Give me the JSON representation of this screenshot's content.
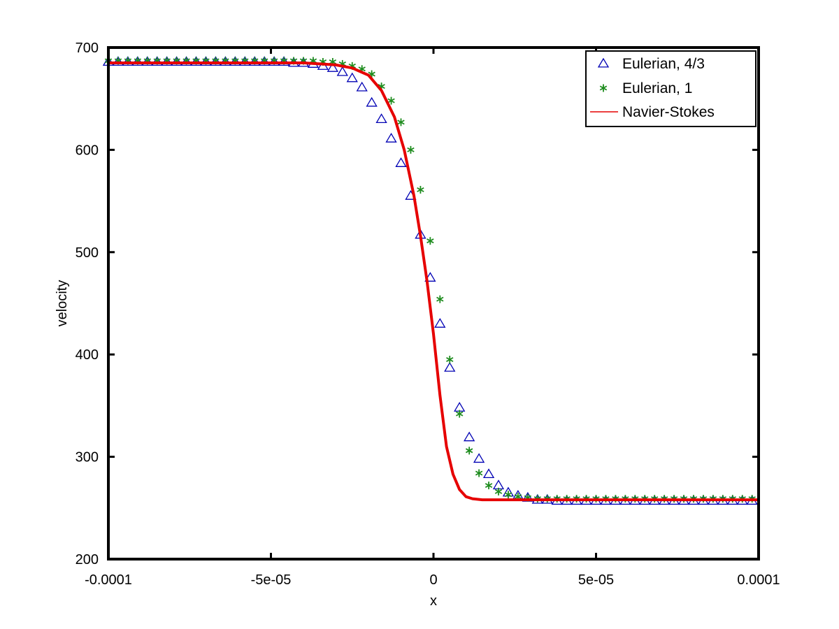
{
  "chart_data": {
    "type": "scatter",
    "title": "",
    "xlabel": "x",
    "ylabel": "velocity",
    "xlim": [
      -0.0001,
      0.0001
    ],
    "ylim": [
      200,
      700
    ],
    "x_ticks": [
      -0.0001,
      -5e-05,
      0,
      5e-05,
      0.0001
    ],
    "x_tick_labels": [
      "-0.0001",
      "-5e-05",
      "0",
      "5e-05",
      "0.0001"
    ],
    "y_ticks": [
      200,
      300,
      400,
      500,
      600,
      700
    ],
    "y_tick_labels": [
      "200",
      "300",
      "400",
      "500",
      "600",
      "700"
    ],
    "grid": false,
    "legend_position": "top-right",
    "series": [
      {
        "name": "Eulerian, 4/3",
        "style": "marker",
        "marker": "triangle",
        "color": "#0000b4",
        "x": [
          -0.0001,
          -9.7e-05,
          -9.4e-05,
          -9.1e-05,
          -8.8e-05,
          -8.5e-05,
          -8.2e-05,
          -7.9e-05,
          -7.6e-05,
          -7.3e-05,
          -7e-05,
          -6.7e-05,
          -6.4e-05,
          -6.1e-05,
          -5.8e-05,
          -5.5e-05,
          -5.2e-05,
          -4.9e-05,
          -4.6e-05,
          -4.3e-05,
          -4e-05,
          -3.7e-05,
          -3.4e-05,
          -3.1e-05,
          -2.8e-05,
          -2.5e-05,
          -2.2e-05,
          -1.9e-05,
          -1.6e-05,
          -1.3e-05,
          -1e-05,
          -7e-06,
          -4e-06,
          -1e-06,
          2e-06,
          5e-06,
          8e-06,
          1.1e-05,
          1.4e-05,
          1.7e-05,
          2e-05,
          2.3e-05,
          2.6e-05,
          2.9e-05,
          3.2e-05,
          3.5e-05,
          3.8e-05,
          4.1e-05,
          4.4e-05,
          4.7e-05,
          5e-05,
          5.3e-05,
          5.6e-05,
          5.9e-05,
          6.2e-05,
          6.5e-05,
          6.8e-05,
          7.1e-05,
          7.4e-05,
          7.7e-05,
          8e-05,
          8.3e-05,
          8.6e-05,
          8.9e-05,
          9.2e-05,
          9.5e-05,
          9.8e-05
        ],
        "y": [
          686,
          686,
          686,
          686,
          686,
          686,
          686,
          686,
          686,
          686,
          686,
          686,
          686,
          686,
          686,
          686,
          686,
          686,
          686,
          685,
          685,
          684,
          682,
          680,
          676,
          670,
          661,
          646,
          630,
          611,
          587,
          555,
          517,
          475,
          430,
          387,
          348,
          319,
          298,
          283,
          272,
          265,
          262,
          260,
          258,
          258,
          257,
          257,
          257,
          257,
          257,
          257,
          257,
          257,
          257,
          257,
          257,
          257,
          257,
          257,
          257,
          257,
          257,
          257,
          257,
          257,
          257
        ]
      },
      {
        "name": "Eulerian, 1",
        "style": "marker",
        "marker": "asterisk",
        "color": "#1e8c1e",
        "x": [
          -0.0001,
          -9.7e-05,
          -9.4e-05,
          -9.1e-05,
          -8.8e-05,
          -8.5e-05,
          -8.2e-05,
          -7.9e-05,
          -7.6e-05,
          -7.3e-05,
          -7e-05,
          -6.7e-05,
          -6.4e-05,
          -6.1e-05,
          -5.8e-05,
          -5.5e-05,
          -5.2e-05,
          -4.9e-05,
          -4.6e-05,
          -4.3e-05,
          -4e-05,
          -3.7e-05,
          -3.4e-05,
          -3.1e-05,
          -2.8e-05,
          -2.5e-05,
          -2.2e-05,
          -1.9e-05,
          -1.6e-05,
          -1.3e-05,
          -1e-05,
          -7e-06,
          -4e-06,
          -1e-06,
          2e-06,
          5e-06,
          8e-06,
          1.1e-05,
          1.4e-05,
          1.7e-05,
          2e-05,
          2.3e-05,
          2.6e-05,
          2.9e-05,
          3.2e-05,
          3.5e-05,
          3.8e-05,
          4.1e-05,
          4.4e-05,
          4.7e-05,
          5e-05,
          5.3e-05,
          5.6e-05,
          5.9e-05,
          6.2e-05,
          6.5e-05,
          6.8e-05,
          7.1e-05,
          7.4e-05,
          7.7e-05,
          8e-05,
          8.3e-05,
          8.6e-05,
          8.9e-05,
          9.2e-05,
          9.5e-05,
          9.8e-05
        ],
        "y": [
          687,
          687,
          687,
          687,
          687,
          687,
          687,
          687,
          687,
          687,
          687,
          687,
          687,
          687,
          687,
          687,
          687,
          687,
          687,
          687,
          687,
          687,
          686,
          686,
          684,
          682,
          679,
          674,
          662,
          648,
          627,
          600,
          561,
          511,
          454,
          395,
          342,
          306,
          284,
          272,
          266,
          263,
          261,
          260,
          259,
          259,
          259,
          259,
          259,
          259,
          259,
          259,
          259,
          259,
          259,
          259,
          259,
          259,
          259,
          259,
          259,
          259,
          259,
          259,
          259,
          259,
          259
        ]
      },
      {
        "name": "Navier-Stokes",
        "style": "line",
        "color": "#e60000",
        "x": [
          -0.0001,
          -7e-05,
          -5e-05,
          -4e-05,
          -3.5e-05,
          -3e-05,
          -2.5e-05,
          -2e-05,
          -1.6e-05,
          -1.2e-05,
          -9e-06,
          -6e-06,
          -4e-06,
          -2e-06,
          0,
          2e-06,
          4e-06,
          6e-06,
          8e-06,
          1e-05,
          1.2e-05,
          1.5e-05,
          2e-05,
          3e-05,
          5e-05,
          0.0001
        ],
        "y": [
          685,
          685,
          685,
          685,
          684,
          683,
          680,
          673,
          658,
          632,
          600,
          555,
          516,
          472,
          420,
          360,
          310,
          283,
          268,
          261,
          259,
          258,
          258,
          258,
          258,
          258
        ]
      }
    ]
  }
}
